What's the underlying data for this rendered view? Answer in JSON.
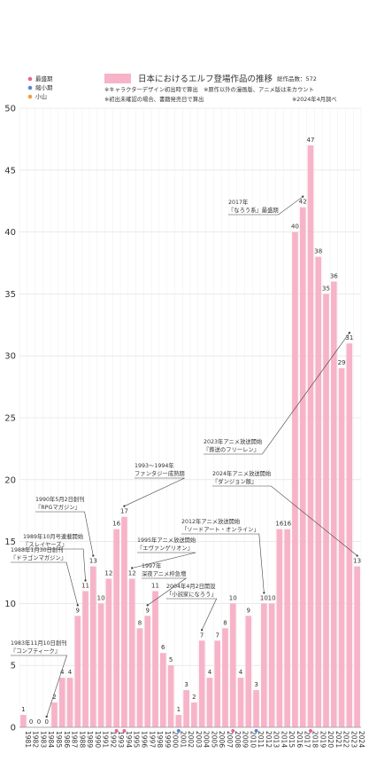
{
  "legend": [
    {
      "label": "最盛期",
      "color": "#e8649a"
    },
    {
      "label": "縮小期",
      "color": "#5a86d6"
    },
    {
      "label": "小山",
      "color": "#f0a040"
    }
  ],
  "chart_data": {
    "type": "bar",
    "title": "日本におけるエルフ登場作品の推移",
    "subtitle": "総作品数：572",
    "notes": [
      "※キャラクターデザイン初出時で算出　※原作以外の漫画版、アニメ版は未カウント",
      "※初出未確認の場合、書籍発売日で算出",
      "※2024年4月調べ"
    ],
    "categories": [
      "1981",
      "1982",
      "1983",
      "1984",
      "1985",
      "1986",
      "1987",
      "1988",
      "1989",
      "1990",
      "1991",
      "1992",
      "1993",
      "1994",
      "1995",
      "1996",
      "1997",
      "1998",
      "1999",
      "2000",
      "2001",
      "2002",
      "2003",
      "2004",
      "2005",
      "2006",
      "2007",
      "2008",
      "2009",
      "2010",
      "2011",
      "2012",
      "2013",
      "2014",
      "2015",
      "2016",
      "2017",
      "2018",
      "2019",
      "2020",
      "2021",
      "2022",
      "2023",
      "2024"
    ],
    "values": [
      1,
      0,
      0,
      0,
      2,
      4,
      4,
      9,
      11,
      13,
      10,
      12,
      16,
      17,
      12,
      8,
      9,
      11,
      6,
      5,
      1,
      3,
      2,
      7,
      4,
      7,
      8,
      10,
      4,
      9,
      3,
      10,
      10,
      16,
      16,
      40,
      42,
      47,
      38,
      35,
      36,
      29,
      31,
      13
    ],
    "color": "#f7b3c8",
    "ylim": [
      0,
      50
    ],
    "yticks": [
      0,
      5,
      10,
      15,
      20,
      25,
      30,
      35,
      40,
      45,
      50
    ],
    "grid": true,
    "markers": [
      {
        "category": "1993",
        "legend": 0
      },
      {
        "category": "1994",
        "legend": 0
      },
      {
        "category": "2001",
        "legend": 1
      },
      {
        "category": "2008",
        "legend": 0
      },
      {
        "category": "2011",
        "legend": 1
      },
      {
        "category": "2018",
        "legend": 0
      }
    ],
    "annotations": [
      {
        "lines": [
          "1983年11月10日創刊",
          "『コンプティーク』"
        ],
        "category": "1984"
      },
      {
        "lines": [
          "1988年1月30日創刊",
          "『ドラゴンマガジン』"
        ],
        "category": "1988"
      },
      {
        "lines": [
          "1989年10月号連載開始",
          "『スレイヤーズ』"
        ],
        "category": "1989"
      },
      {
        "lines": [
          "1990年5月2日創刊",
          "『RPGマガジン』"
        ],
        "category": "1990"
      },
      {
        "lines": [
          "1993〜1994年",
          "ファンタジー成熟期"
        ],
        "category": "1994"
      },
      {
        "lines": [
          "1995年アニメ放送開始",
          "『エヴァンゲリオン』"
        ],
        "category": "1995"
      },
      {
        "lines": [
          "1997年",
          "深夜アニメ枠急増"
        ],
        "category": "1997"
      },
      {
        "lines": [
          "2004年4月2日開設",
          "「小説家になろう」"
        ],
        "category": "2004"
      },
      {
        "lines": [
          "2012年アニメ放送開始",
          "「ソードアート・オンライン」"
        ],
        "category": "2012"
      },
      {
        "lines": [
          "2017年",
          "『なろう系』最盛期"
        ],
        "category": "2017"
      },
      {
        "lines": [
          "2023年アニメ放送開始",
          "『葬送のフリーレン』"
        ],
        "category": "2023"
      },
      {
        "lines": [
          "2024年アニメ放送開始",
          "『ダンジョン飯』"
        ],
        "category": "2024"
      }
    ]
  }
}
